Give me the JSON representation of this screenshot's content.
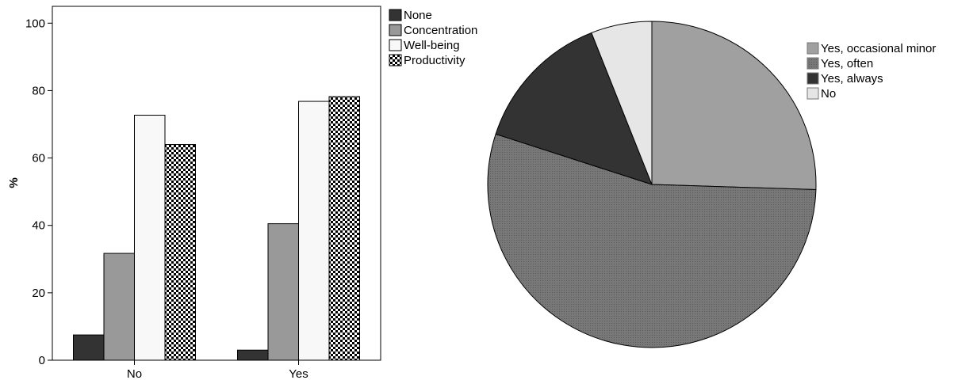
{
  "chart_data": [
    {
      "type": "bar",
      "categories": [
        "No",
        "Yes"
      ],
      "ylabel": "%",
      "xlabel": "",
      "ylim": [
        0,
        105
      ],
      "yticks": [
        0,
        20,
        40,
        60,
        80,
        100
      ],
      "legend_position": "right",
      "series": [
        {
          "name": "None",
          "values": [
            7.5,
            3
          ],
          "fill": "#333333",
          "pattern": "solid"
        },
        {
          "name": "Concentration",
          "values": [
            31.7,
            40.5
          ],
          "fill": "#999999",
          "pattern": "solid"
        },
        {
          "name": "Well-being",
          "values": [
            72.7,
            76.8
          ],
          "fill": "#f8f8f8",
          "pattern": "solid"
        },
        {
          "name": "Productivity",
          "values": [
            64,
            78.2
          ],
          "fill": "#000000",
          "pattern": "checker"
        }
      ]
    },
    {
      "type": "pie",
      "legend_position": "right",
      "start": "12 o'clock",
      "direction": "clockwise",
      "slices": [
        {
          "label": "Yes, occasional minor",
          "value": 25.5,
          "color": "#a0a0a0",
          "pattern": "solid"
        },
        {
          "label": "Yes, often",
          "value": 54.5,
          "color": "#707070",
          "pattern": "dots"
        },
        {
          "label": "Yes, always",
          "value": 14.0,
          "color": "#333333",
          "pattern": "solid"
        },
        {
          "label": "No",
          "value": 6.0,
          "color": "#e6e6e6",
          "pattern": "solid"
        }
      ]
    }
  ]
}
